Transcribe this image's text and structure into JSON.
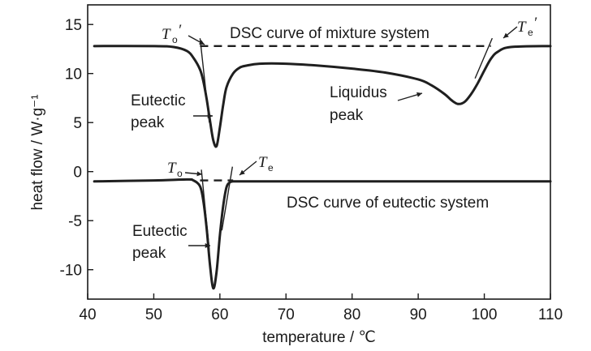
{
  "chart_data": {
    "type": "line",
    "xlabel": "temperature / ℃",
    "ylabel": "heat flow / W·g⁻¹",
    "xlim": [
      40,
      110
    ],
    "ylim": [
      -13,
      17
    ],
    "xticks": [
      40,
      50,
      60,
      70,
      80,
      90,
      100,
      110
    ],
    "yticks": [
      15,
      10,
      5,
      0,
      -5,
      -10
    ],
    "grid": false,
    "series": [
      {
        "name": "DSC curve of mixture system",
        "x": [
          41,
          50,
          53,
          55,
          56,
          57,
          57.5,
          58,
          58.5,
          59,
          59.5,
          60,
          60.5,
          61,
          62,
          63,
          64,
          66,
          70,
          75,
          80,
          85,
          90,
          92,
          94,
          95,
          96,
          97,
          98,
          99,
          100,
          101,
          102,
          104,
          110
        ],
        "y": [
          12.8,
          12.8,
          12.7,
          12.3,
          11.6,
          10.4,
          9.2,
          7.4,
          5.2,
          3.2,
          2.6,
          4.5,
          6.8,
          8.6,
          10.0,
          10.6,
          10.8,
          11.0,
          11.0,
          10.8,
          10.5,
          10.1,
          9.4,
          8.8,
          7.9,
          7.3,
          6.9,
          7.1,
          7.9,
          9.0,
          10.3,
          11.5,
          12.2,
          12.7,
          12.8
        ]
      },
      {
        "name": "DSC curve of eutectic system",
        "x": [
          41,
          50,
          55,
          56,
          57,
          57.5,
          58,
          58.5,
          59,
          59.5,
          60,
          60.5,
          61,
          61.5,
          62,
          63,
          65,
          70,
          80,
          90,
          100,
          110
        ],
        "y": [
          -1.0,
          -0.9,
          -0.8,
          -0.9,
          -1.5,
          -3.0,
          -5.8,
          -9.5,
          -11.9,
          -10.2,
          -6.5,
          -3.5,
          -1.6,
          -1.1,
          -1.0,
          -1.0,
          -1.0,
          -1.0,
          -1.0,
          -1.0,
          -1.0,
          -1.0
        ]
      }
    ],
    "baselines": [
      {
        "from": [
          57,
          12.8
        ],
        "to": [
          101,
          12.8
        ]
      },
      {
        "from": [
          57,
          -0.9
        ],
        "to": [
          62,
          -0.9
        ]
      }
    ],
    "annotations": {
      "mixture_label": "DSC curve of mixture system",
      "eutectic_label": "DSC curve of eutectic system",
      "eutectic_peak_upper_1": "Eutectic",
      "eutectic_peak_upper_2": "peak",
      "liquidus_peak_1": "Liquidus",
      "liquidus_peak_2": "peak",
      "eutectic_peak_lower_1": "Eutectic",
      "eutectic_peak_lower_2": "peak",
      "to_prime": {
        "main": "T",
        "sub": "o",
        "mark": "′"
      },
      "te_prime": {
        "main": "T",
        "sub": "e",
        "mark": "′"
      },
      "to": {
        "main": "T",
        "sub": "o"
      },
      "te": {
        "main": "T",
        "sub": "e"
      }
    }
  }
}
